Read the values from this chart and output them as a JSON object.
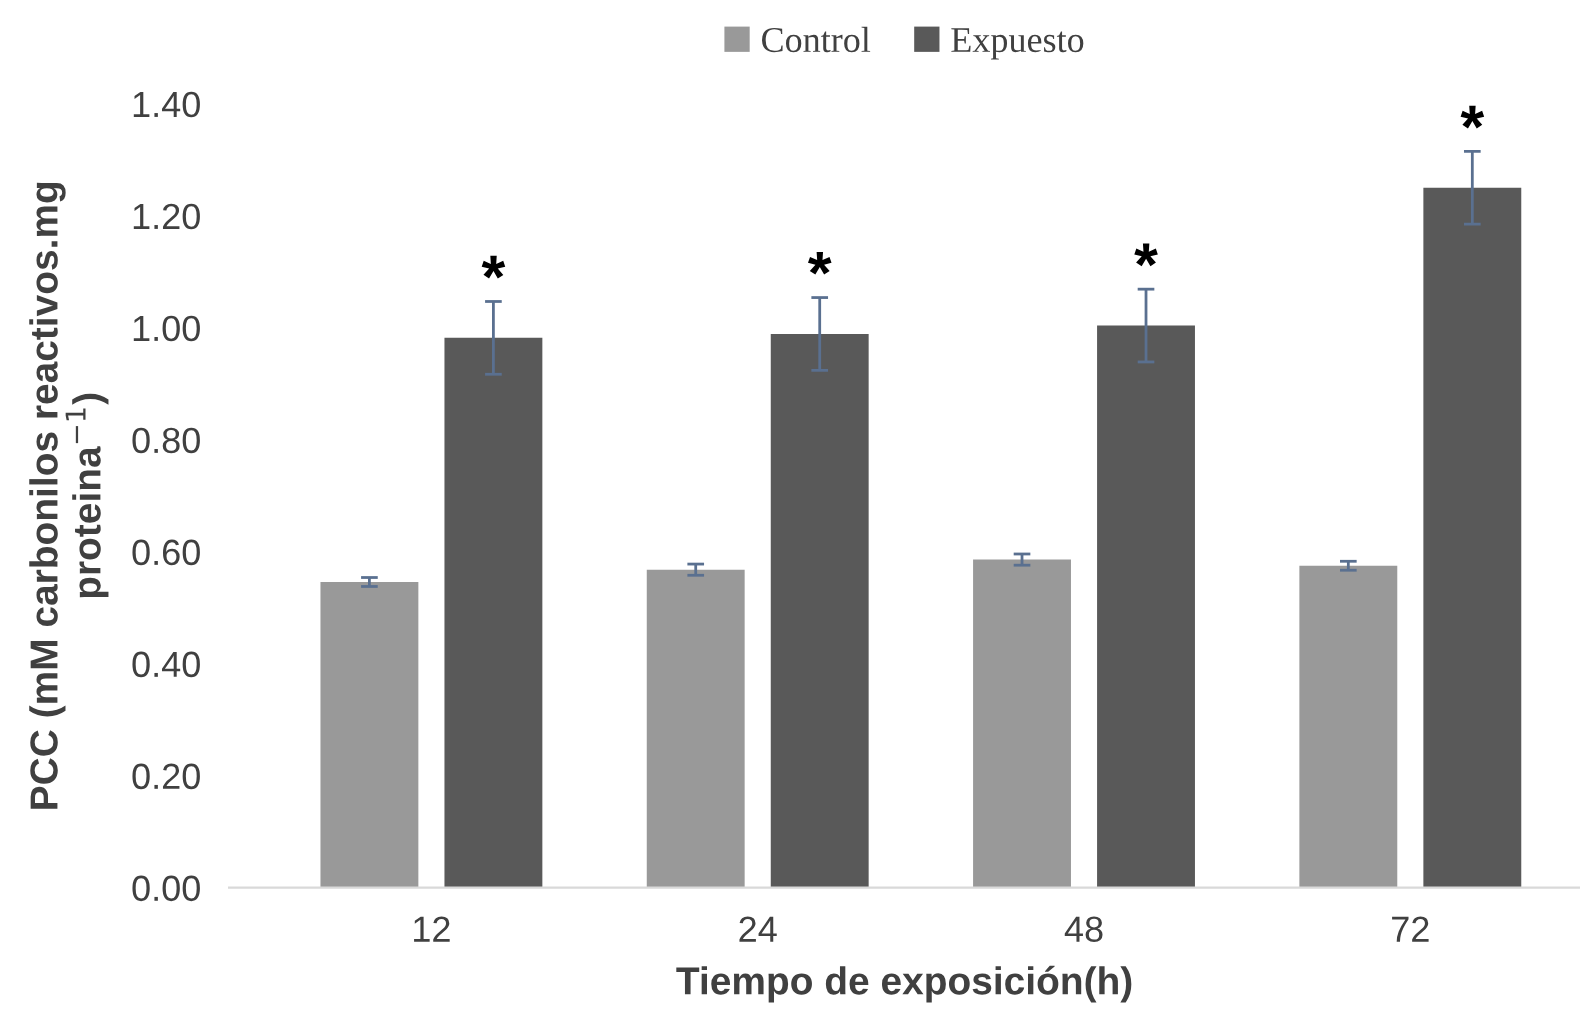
{
  "chart_data": {
    "type": "bar",
    "categories": [
      "12",
      "24",
      "48",
      "72"
    ],
    "xlabel": "Tiempo de exposición(h)",
    "ylabel": "PCC (mM carbonilos reactivos.mg\nproteina$^{−1}$)",
    "series": [
      {
        "name": "Control",
        "color": "#999999",
        "values": [
          0.546,
          0.568,
          0.586,
          0.575
        ],
        "errors": [
          0.008,
          0.01,
          0.01,
          0.008
        ]
      },
      {
        "name": "Expuesto",
        "color": "#595959",
        "values": [
          0.982,
          0.989,
          1.004,
          1.25
        ],
        "errors": [
          0.065,
          0.065,
          0.065,
          0.065
        ]
      }
    ],
    "ylim": [
      0,
      1.4
    ],
    "yticks": [
      {
        "value": 0,
        "label": "0.00"
      },
      {
        "value": 0.2,
        "label": "0.20"
      },
      {
        "value": 0.4,
        "label": "0.40"
      },
      {
        "value": 0.6,
        "label": "0.60"
      },
      {
        "value": 0.8,
        "label": "0.80"
      },
      {
        "value": 1.0,
        "label": "1.00"
      },
      {
        "value": 1.2,
        "label": "1.20"
      },
      {
        "value": 1.4,
        "label": "1.40"
      }
    ],
    "annotations": [
      "*",
      "*",
      "*",
      "*"
    ],
    "grid": false,
    "legend": "top"
  }
}
